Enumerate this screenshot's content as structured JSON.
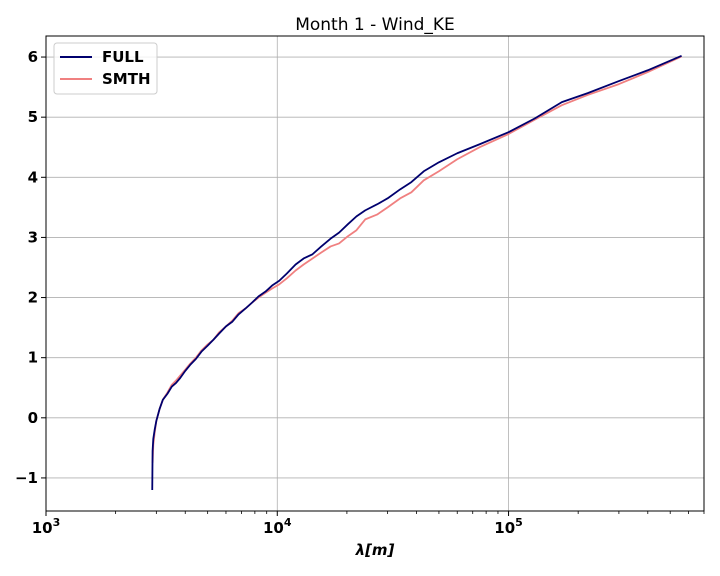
{
  "chart_data": {
    "type": "line",
    "title": "Month 1 - Wind_KE",
    "xlabel": "λ[m]",
    "ylabel": "",
    "xscale": "log",
    "xlim": [
      1000,
      700000
    ],
    "ylim": [
      -1.55,
      6.35
    ],
    "xticks": [
      {
        "value": 1000,
        "base": "10",
        "exp": "3"
      },
      {
        "value": 10000,
        "base": "10",
        "exp": "4"
      },
      {
        "value": 100000,
        "base": "10",
        "exp": "5"
      }
    ],
    "yticks": [
      {
        "value": -1,
        "label": "−1"
      },
      {
        "value": 0,
        "label": "0"
      },
      {
        "value": 1,
        "label": "1"
      },
      {
        "value": 2,
        "label": "2"
      },
      {
        "value": 3,
        "label": "3"
      },
      {
        "value": 4,
        "label": "4"
      },
      {
        "value": 5,
        "label": "5"
      },
      {
        "value": 6,
        "label": "6"
      }
    ],
    "grid": true,
    "legend": "upper-left",
    "series": [
      {
        "name": "FULL",
        "color": "#00006e",
        "x": [
          2880,
          2890,
          2910,
          2950,
          3000,
          3100,
          3200,
          3350,
          3500,
          3650,
          3800,
          4000,
          4200,
          4450,
          4700,
          5000,
          5300,
          5600,
          6000,
          6400,
          6800,
          7300,
          7800,
          8300,
          8900,
          9500,
          10200,
          11000,
          12000,
          13000,
          14200,
          15500,
          17000,
          18500,
          20200,
          22000,
          24000,
          27000,
          30000,
          34000,
          38000,
          43000,
          50000,
          60000,
          75000,
          100000,
          130000,
          170000,
          220000,
          300000,
          400000,
          560000
        ],
        "y": [
          -1.2,
          -0.55,
          -0.35,
          -0.2,
          -0.05,
          0.15,
          0.3,
          0.4,
          0.52,
          0.58,
          0.66,
          0.78,
          0.88,
          0.98,
          1.1,
          1.2,
          1.3,
          1.4,
          1.52,
          1.6,
          1.72,
          1.82,
          1.92,
          2.02,
          2.1,
          2.2,
          2.28,
          2.4,
          2.55,
          2.65,
          2.72,
          2.85,
          2.98,
          3.08,
          3.22,
          3.35,
          3.45,
          3.55,
          3.65,
          3.8,
          3.92,
          4.1,
          4.25,
          4.4,
          4.55,
          4.75,
          4.98,
          5.25,
          5.4,
          5.6,
          5.78,
          6.02
        ]
      },
      {
        "name": "SMTH",
        "color": "#f08080",
        "x": [
          2890,
          2910,
          2950,
          3000,
          3100,
          3200,
          3350,
          3500,
          3650,
          3800,
          4000,
          4200,
          4450,
          4700,
          5000,
          5300,
          5600,
          6000,
          6400,
          6800,
          7300,
          7800,
          8300,
          8900,
          9500,
          10200,
          11000,
          12000,
          13000,
          14200,
          15500,
          17000,
          18500,
          20200,
          22000,
          24000,
          27000,
          30000,
          34000,
          38000,
          43000,
          50000,
          60000,
          75000,
          100000,
          130000,
          170000,
          220000,
          300000,
          400000,
          560000
        ],
        "y": [
          -0.75,
          -0.45,
          -0.25,
          -0.05,
          0.15,
          0.3,
          0.42,
          0.55,
          0.62,
          0.7,
          0.8,
          0.9,
          1.0,
          1.12,
          1.22,
          1.3,
          1.42,
          1.52,
          1.62,
          1.74,
          1.82,
          1.92,
          2.0,
          2.08,
          2.15,
          2.22,
          2.32,
          2.45,
          2.55,
          2.65,
          2.75,
          2.85,
          2.9,
          3.02,
          3.12,
          3.3,
          3.38,
          3.5,
          3.65,
          3.75,
          3.95,
          4.1,
          4.3,
          4.5,
          4.72,
          4.96,
          5.2,
          5.37,
          5.55,
          5.75,
          6.01
        ]
      }
    ]
  }
}
